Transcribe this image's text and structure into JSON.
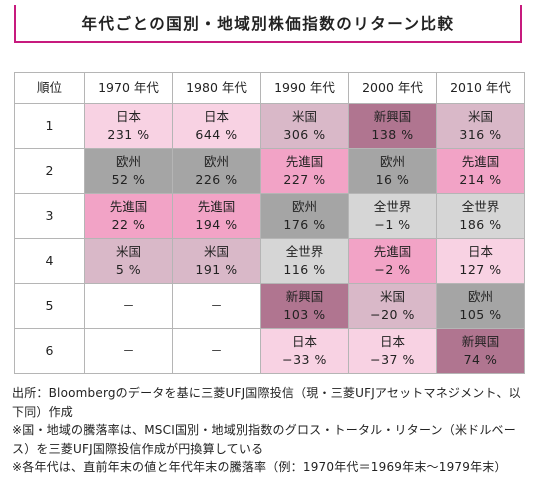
{
  "title": "年代ごとの国別・地域別株価指数のリターン比較",
  "colors": {
    "accent": "#c71a7e",
    "日本": "#f8d2e3",
    "欧州": "#a5a5a5",
    "先進国": "#f2a3c6",
    "米国": "#d9b8c8",
    "全世界": "#d6d6d6",
    "新興国": "#b07590",
    "empty": "#ffffff"
  },
  "table": {
    "headers": [
      "順位",
      "1970 年代",
      "1980 年代",
      "1990 年代",
      "2000 年代",
      "2010 年代"
    ],
    "rows": [
      {
        "rank": "1",
        "cells": [
          {
            "name": "日本",
            "value": "231 %"
          },
          {
            "name": "日本",
            "value": "644 %"
          },
          {
            "name": "米国",
            "value": "306 %"
          },
          {
            "name": "新興国",
            "value": "138 %"
          },
          {
            "name": "米国",
            "value": "316 %"
          }
        ]
      },
      {
        "rank": "2",
        "cells": [
          {
            "name": "欧州",
            "value": "52 %"
          },
          {
            "name": "欧州",
            "value": "226 %"
          },
          {
            "name": "先進国",
            "value": "227 %"
          },
          {
            "name": "欧州",
            "value": "16 %"
          },
          {
            "name": "先進国",
            "value": "214 %"
          }
        ]
      },
      {
        "rank": "3",
        "cells": [
          {
            "name": "先進国",
            "value": "22 %"
          },
          {
            "name": "先進国",
            "value": "194 %"
          },
          {
            "name": "欧州",
            "value": "176 %"
          },
          {
            "name": "全世界",
            "value": "−1 %"
          },
          {
            "name": "全世界",
            "value": "186 %"
          }
        ]
      },
      {
        "rank": "4",
        "cells": [
          {
            "name": "米国",
            "value": "5 %"
          },
          {
            "name": "米国",
            "value": "191 %"
          },
          {
            "name": "全世界",
            "value": "116 %"
          },
          {
            "name": "先進国",
            "value": "−2 %"
          },
          {
            "name": "日本",
            "value": "127 %"
          }
        ]
      },
      {
        "rank": "5",
        "cells": [
          {
            "name": "",
            "value": "",
            "dash": "－"
          },
          {
            "name": "",
            "value": "",
            "dash": "－"
          },
          {
            "name": "新興国",
            "value": "103 %"
          },
          {
            "name": "米国",
            "value": "−20 %"
          },
          {
            "name": "欧州",
            "value": "105 %"
          }
        ]
      },
      {
        "rank": "6",
        "cells": [
          {
            "name": "",
            "value": "",
            "dash": "－"
          },
          {
            "name": "",
            "value": "",
            "dash": "－"
          },
          {
            "name": "日本",
            "value": "−33 %"
          },
          {
            "name": "日本",
            "value": "−37 %"
          },
          {
            "name": "新興国",
            "value": "74 %"
          }
        ]
      }
    ]
  },
  "notes": [
    "出所：Bloombergのデータを基に三菱UFJ国際投信（現・三菱UFJアセットマネジメント、以下同）作成",
    "※国・地域の騰落率は、MSCI国別・地域別指数のグロス・トータル・リターン（米ドルベース）を三菱UFJ国際投信作成が円換算している",
    "※各年代は、直前年末の値と年代年末の騰落率（例：1970年代＝1969年末～1979年末）"
  ]
}
